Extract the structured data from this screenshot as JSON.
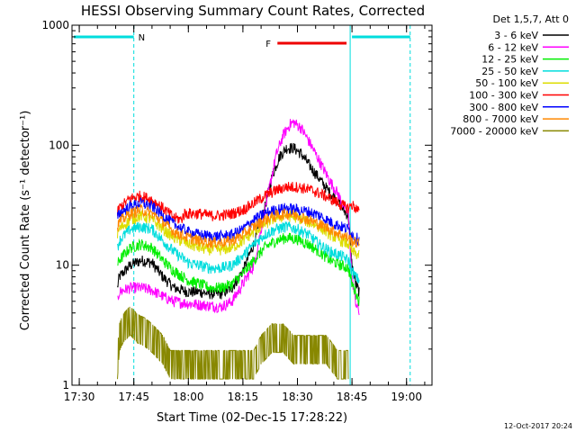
{
  "chart_data": {
    "type": "line",
    "title": "HESSI Observing Summary Count Rates, Corrected",
    "xlabel": "Start Time (02-Dec-15 17:28:22)",
    "ylabel": "Corrected Count Rate (s⁻¹ detector⁻¹)",
    "x_unit": "minutes since 17:28:22",
    "xlim": [
      0,
      99
    ],
    "ylim": [
      1,
      1000
    ],
    "y_scale": "log",
    "x_ticks": [
      {
        "t": 2,
        "label": "17:30"
      },
      {
        "t": 17,
        "label": "17:45"
      },
      {
        "t": 32,
        "label": "18:00"
      },
      {
        "t": 47,
        "label": "18:15"
      },
      {
        "t": 62,
        "label": "18:30"
      },
      {
        "t": 77,
        "label": "18:45"
      },
      {
        "t": 92,
        "label": "19:00"
      }
    ],
    "y_ticks": [
      {
        "v": 1,
        "label": "1"
      },
      {
        "v": 10,
        "label": "10"
      },
      {
        "v": 100,
        "label": "100"
      },
      {
        "v": 1000,
        "label": "1000"
      }
    ],
    "legend": {
      "position": "right",
      "header": "Det 1,5,7, Att 0"
    },
    "series": [
      {
        "name": "3 - 6 keV",
        "color": "#000000",
        "points": [
          [
            12.5,
            6.5
          ],
          [
            13,
            8
          ],
          [
            16,
            10
          ],
          [
            19,
            11
          ],
          [
            22,
            10.5
          ],
          [
            25,
            8
          ],
          [
            28,
            6.5
          ],
          [
            32,
            6
          ],
          [
            35,
            6
          ],
          [
            38,
            5.8
          ],
          [
            41,
            5.8
          ],
          [
            44,
            6.5
          ],
          [
            47,
            9
          ],
          [
            50,
            15
          ],
          [
            53,
            30
          ],
          [
            55,
            55
          ],
          [
            57,
            80
          ],
          [
            59,
            95
          ],
          [
            61,
            95
          ],
          [
            63,
            85
          ],
          [
            65,
            70
          ],
          [
            67,
            58
          ],
          [
            69,
            48
          ],
          [
            71,
            40
          ],
          [
            73,
            35
          ],
          [
            75,
            28
          ],
          [
            76,
            26
          ],
          [
            77,
            10
          ],
          [
            78,
            7
          ],
          [
            79,
            6
          ]
        ]
      },
      {
        "name": "6 - 12 keV",
        "color": "#ff00ff",
        "points": [
          [
            12.5,
            5
          ],
          [
            13,
            6
          ],
          [
            16,
            6.5
          ],
          [
            19,
            6.5
          ],
          [
            22,
            6.2
          ],
          [
            25,
            5.5
          ],
          [
            28,
            5
          ],
          [
            32,
            4.8
          ],
          [
            35,
            4.7
          ],
          [
            38,
            4.6
          ],
          [
            41,
            4.5
          ],
          [
            44,
            5
          ],
          [
            47,
            7
          ],
          [
            50,
            10
          ],
          [
            52,
            20
          ],
          [
            54,
            40
          ],
          [
            56,
            80
          ],
          [
            58,
            120
          ],
          [
            60,
            150
          ],
          [
            61,
            155
          ],
          [
            63,
            140
          ],
          [
            65,
            110
          ],
          [
            67,
            85
          ],
          [
            69,
            65
          ],
          [
            71,
            50
          ],
          [
            73,
            40
          ],
          [
            75,
            30
          ],
          [
            76,
            27
          ],
          [
            77,
            8
          ],
          [
            78,
            5
          ],
          [
            79,
            4
          ]
        ]
      },
      {
        "name": "12 - 25 keV",
        "color": "#00ee00",
        "points": [
          [
            12.5,
            10
          ],
          [
            13,
            11
          ],
          [
            16,
            14
          ],
          [
            19,
            15
          ],
          [
            22,
            14
          ],
          [
            25,
            11
          ],
          [
            28,
            9
          ],
          [
            32,
            7.5
          ],
          [
            35,
            7
          ],
          [
            38,
            6.5
          ],
          [
            41,
            6.5
          ],
          [
            44,
            7
          ],
          [
            47,
            8.5
          ],
          [
            50,
            11
          ],
          [
            53,
            14
          ],
          [
            56,
            16
          ],
          [
            59,
            17
          ],
          [
            62,
            16.5
          ],
          [
            65,
            15
          ],
          [
            68,
            13
          ],
          [
            71,
            11
          ],
          [
            74,
            10
          ],
          [
            76,
            9.5
          ],
          [
            77,
            7
          ],
          [
            78,
            6
          ],
          [
            79,
            5
          ]
        ]
      },
      {
        "name": "25 - 50 keV",
        "color": "#00dddd",
        "points": [
          [
            12.5,
            14
          ],
          [
            13,
            16
          ],
          [
            16,
            20
          ],
          [
            19,
            21
          ],
          [
            22,
            20
          ],
          [
            25,
            16
          ],
          [
            28,
            13
          ],
          [
            32,
            10.5
          ],
          [
            35,
            10
          ],
          [
            38,
            9.5
          ],
          [
            41,
            9.5
          ],
          [
            44,
            10
          ],
          [
            47,
            12
          ],
          [
            50,
            15
          ],
          [
            53,
            18
          ],
          [
            56,
            20
          ],
          [
            59,
            21
          ],
          [
            62,
            20
          ],
          [
            65,
            18
          ],
          [
            68,
            15
          ],
          [
            71,
            13
          ],
          [
            74,
            12
          ],
          [
            76,
            11
          ],
          [
            77,
            9
          ],
          [
            78,
            8
          ],
          [
            79,
            7.5
          ]
        ]
      },
      {
        "name": "50 - 100 keV",
        "color": "#dddd00",
        "points": [
          [
            12.5,
            18
          ],
          [
            13,
            20
          ],
          [
            16,
            24
          ],
          [
            19,
            26
          ],
          [
            22,
            24
          ],
          [
            25,
            20
          ],
          [
            28,
            17
          ],
          [
            32,
            15
          ],
          [
            35,
            14
          ],
          [
            38,
            13.5
          ],
          [
            41,
            13.5
          ],
          [
            44,
            14
          ],
          [
            47,
            16
          ],
          [
            50,
            19
          ],
          [
            53,
            22
          ],
          [
            56,
            25
          ],
          [
            59,
            26
          ],
          [
            62,
            25
          ],
          [
            65,
            23
          ],
          [
            68,
            21
          ],
          [
            71,
            18
          ],
          [
            74,
            16
          ],
          [
            76,
            15
          ],
          [
            77,
            13
          ],
          [
            78,
            12.5
          ],
          [
            79,
            12
          ]
        ]
      },
      {
        "name": "100 - 300 keV",
        "color": "#ff0000",
        "points": [
          [
            12.5,
            28
          ],
          [
            13,
            30
          ],
          [
            16,
            36
          ],
          [
            19,
            38
          ],
          [
            22,
            35
          ],
          [
            25,
            30
          ],
          [
            28,
            25
          ],
          [
            30,
            24
          ],
          [
            31,
            27
          ],
          [
            35,
            27
          ],
          [
            38,
            26
          ],
          [
            41,
            26
          ],
          [
            44,
            27
          ],
          [
            47,
            29
          ],
          [
            50,
            33
          ],
          [
            53,
            38
          ],
          [
            56,
            42
          ],
          [
            59,
            45
          ],
          [
            62,
            45
          ],
          [
            65,
            43
          ],
          [
            68,
            40
          ],
          [
            71,
            36
          ],
          [
            74,
            32
          ],
          [
            76,
            30
          ],
          [
            77,
            32
          ],
          [
            78,
            30
          ],
          [
            79,
            28
          ]
        ]
      },
      {
        "name": "300 - 800 keV",
        "color": "#0000ff",
        "points": [
          [
            12.5,
            25
          ],
          [
            13,
            27
          ],
          [
            16,
            31
          ],
          [
            19,
            33
          ],
          [
            22,
            31
          ],
          [
            25,
            26
          ],
          [
            28,
            22
          ],
          [
            32,
            19
          ],
          [
            35,
            18
          ],
          [
            38,
            17.5
          ],
          [
            41,
            17.5
          ],
          [
            44,
            18
          ],
          [
            47,
            20
          ],
          [
            50,
            24
          ],
          [
            53,
            27
          ],
          [
            56,
            29
          ],
          [
            59,
            30
          ],
          [
            62,
            29
          ],
          [
            65,
            28
          ],
          [
            68,
            26
          ],
          [
            71,
            23
          ],
          [
            74,
            21
          ],
          [
            76,
            20
          ],
          [
            77,
            18
          ],
          [
            78,
            17
          ],
          [
            79,
            16.5
          ]
        ]
      },
      {
        "name": "800 - 7000 keV",
        "color": "#ff8800",
        "points": [
          [
            12.5,
            21
          ],
          [
            13,
            23
          ],
          [
            16,
            27
          ],
          [
            19,
            29
          ],
          [
            22,
            27
          ],
          [
            25,
            23
          ],
          [
            28,
            19
          ],
          [
            32,
            17
          ],
          [
            35,
            16
          ],
          [
            38,
            15.5
          ],
          [
            41,
            15.5
          ],
          [
            44,
            16
          ],
          [
            47,
            18
          ],
          [
            50,
            21
          ],
          [
            53,
            24
          ],
          [
            56,
            26
          ],
          [
            59,
            27
          ],
          [
            62,
            26
          ],
          [
            65,
            24
          ],
          [
            68,
            22
          ],
          [
            71,
            20
          ],
          [
            74,
            18
          ],
          [
            76,
            17
          ],
          [
            77,
            16
          ],
          [
            78,
            15.5
          ],
          [
            79,
            15
          ]
        ]
      },
      {
        "name": "7000 - 20000 keV",
        "color": "#888800",
        "points": [
          [
            12.5,
            1.5
          ],
          [
            13,
            2.5
          ],
          [
            14,
            3
          ],
          [
            16,
            3.5
          ],
          [
            18,
            3
          ],
          [
            20,
            2.8
          ],
          [
            22,
            2.5
          ],
          [
            25,
            2
          ],
          [
            27,
            1.5
          ],
          [
            50,
            1.5
          ],
          [
            52,
            2
          ],
          [
            55,
            2.5
          ],
          [
            58,
            2.5
          ],
          [
            61,
            2
          ],
          [
            64,
            2
          ],
          [
            67,
            2
          ],
          [
            70,
            2
          ],
          [
            73,
            1.5
          ],
          [
            76,
            1.5
          ]
        ]
      }
    ],
    "annotations": {
      "night_cyan": {
        "color": "#00dddd",
        "label": "N",
        "bars": [
          {
            "start": 0,
            "end": 17
          },
          {
            "start": 76.5,
            "end": 93
          }
        ],
        "lines": [
          0,
          76.5
        ],
        "dashed_lines": [
          17,
          93
        ]
      },
      "flare_red": {
        "color": "#ee0000",
        "label": "F",
        "start": 56.5,
        "end": 75.5
      }
    }
  },
  "footer": {
    "timestamp": "12-Oct-2017 20:24"
  }
}
